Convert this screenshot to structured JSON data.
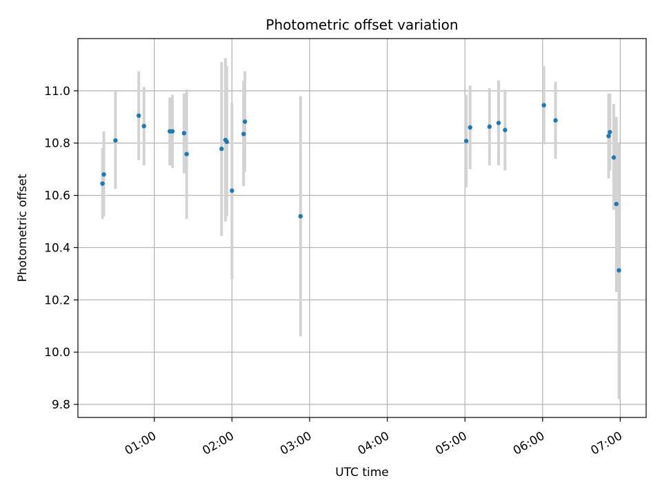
{
  "chart_data": {
    "type": "scatter",
    "title": "Photometric offset variation",
    "xlabel": "UTC time",
    "ylabel": "Photometric offset",
    "x_unit": "UTC time of day",
    "xlim": [
      "00:01",
      "07:20"
    ],
    "ylim": [
      9.75,
      11.2
    ],
    "x_ticks": [
      "01:00",
      "02:00",
      "03:00",
      "04:00",
      "05:00",
      "06:00",
      "07:00"
    ],
    "y_ticks": [
      "9.8",
      "10.0",
      "10.2",
      "10.4",
      "10.6",
      "10.8",
      "11.0"
    ],
    "grid": true,
    "errorbar_color": "#d3d3d3",
    "point_color": "#1f77b4",
    "points": [
      {
        "x": "00:20",
        "y": 10.645,
        "yerr_low": 10.51,
        "yerr_high": 10.78
      },
      {
        "x": "00:21",
        "y": 10.68,
        "yerr_low": 10.52,
        "yerr_high": 10.845
      },
      {
        "x": "00:30",
        "y": 10.81,
        "yerr_low": 10.625,
        "yerr_high": 11.0
      },
      {
        "x": "00:48",
        "y": 10.905,
        "yerr_low": 10.735,
        "yerr_high": 11.075
      },
      {
        "x": "00:52",
        "y": 10.865,
        "yerr_low": 10.715,
        "yerr_high": 11.015
      },
      {
        "x": "01:12",
        "y": 10.845,
        "yerr_low": 10.715,
        "yerr_high": 10.975
      },
      {
        "x": "01:14",
        "y": 10.845,
        "yerr_low": 10.705,
        "yerr_high": 10.985
      },
      {
        "x": "01:23",
        "y": 10.838,
        "yerr_low": 10.685,
        "yerr_high": 10.99
      },
      {
        "x": "01:25",
        "y": 10.758,
        "yerr_low": 10.51,
        "yerr_high": 11.005
      },
      {
        "x": "01:52",
        "y": 10.778,
        "yerr_low": 10.445,
        "yerr_high": 11.11
      },
      {
        "x": "01:55",
        "y": 10.812,
        "yerr_low": 10.5,
        "yerr_high": 11.125
      },
      {
        "x": "01:56",
        "y": 10.805,
        "yerr_low": 10.52,
        "yerr_high": 11.095
      },
      {
        "x": "02:00",
        "y": 10.618,
        "yerr_low": 10.28,
        "yerr_high": 10.955
      },
      {
        "x": "02:09",
        "y": 10.835,
        "yerr_low": 10.635,
        "yerr_high": 11.04
      },
      {
        "x": "02:10",
        "y": 10.882,
        "yerr_low": 10.69,
        "yerr_high": 11.075
      },
      {
        "x": "02:53",
        "y": 10.52,
        "yerr_low": 10.06,
        "yerr_high": 10.98
      },
      {
        "x": "05:01",
        "y": 10.808,
        "yerr_low": 10.63,
        "yerr_high": 10.985
      },
      {
        "x": "05:04",
        "y": 10.86,
        "yerr_low": 10.7,
        "yerr_high": 11.02
      },
      {
        "x": "05:19",
        "y": 10.863,
        "yerr_low": 10.715,
        "yerr_high": 11.01
      },
      {
        "x": "05:26",
        "y": 10.877,
        "yerr_low": 10.715,
        "yerr_high": 11.04
      },
      {
        "x": "05:31",
        "y": 10.85,
        "yerr_low": 10.695,
        "yerr_high": 11.005
      },
      {
        "x": "06:01",
        "y": 10.945,
        "yerr_low": 10.795,
        "yerr_high": 11.095
      },
      {
        "x": "06:10",
        "y": 10.887,
        "yerr_low": 10.74,
        "yerr_high": 11.035
      },
      {
        "x": "06:51",
        "y": 10.827,
        "yerr_low": 10.665,
        "yerr_high": 10.99
      },
      {
        "x": "06:52",
        "y": 10.842,
        "yerr_low": 10.695,
        "yerr_high": 10.99
      },
      {
        "x": "06:55",
        "y": 10.745,
        "yerr_low": 10.545,
        "yerr_high": 10.95
      },
      {
        "x": "06:57",
        "y": 10.567,
        "yerr_low": 10.23,
        "yerr_high": 10.9
      },
      {
        "x": "06:59",
        "y": 10.313,
        "yerr_low": 9.82,
        "yerr_high": 10.8
      }
    ]
  }
}
